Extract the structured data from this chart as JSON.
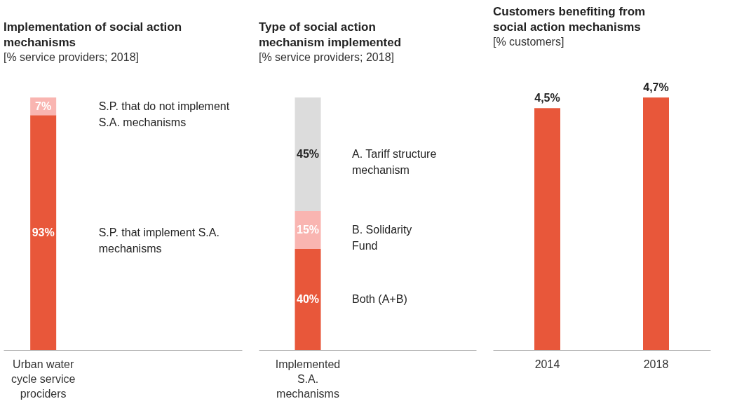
{
  "chart_data": [
    {
      "type": "bar",
      "title": "Implementation of social action mechanisms",
      "subtitle": "[% service providers; 2018]",
      "categories": [
        "Urban water cycle service prociders"
      ],
      "stacked": true,
      "series": [
        {
          "name": "S.P. that implement S.A. mechanisms",
          "color": "#e8573a",
          "values": [
            93
          ],
          "value_labels": [
            "93%"
          ]
        },
        {
          "name": "S.P. that do not implement S.A. mechanisms",
          "color": "#f9b5b1",
          "values": [
            7
          ],
          "value_labels": [
            "7%"
          ]
        }
      ]
    },
    {
      "type": "bar",
      "title": "Type of social action mechanism implemented",
      "subtitle": "[% service providers; 2018]",
      "categories": [
        "Implemented S.A. mechanisms"
      ],
      "stacked": true,
      "series": [
        {
          "name": "Both (A+B)",
          "color": "#e8573a",
          "values": [
            40
          ],
          "value_labels": [
            "40%"
          ]
        },
        {
          "name": "B. Solidarity Fund",
          "color": "#f9b5b1",
          "values": [
            15
          ],
          "value_labels": [
            "15%"
          ]
        },
        {
          "name": "A. Tariff structure mechanism",
          "color": "#dcdcdc",
          "values": [
            45
          ],
          "value_labels": [
            "45%"
          ]
        }
      ]
    },
    {
      "type": "bar",
      "title": "Customers benefiting from social action mechanisms",
      "subtitle": "[% customers]",
      "categories": [
        "2014",
        "2018"
      ],
      "color": "#e8573a",
      "values": [
        4.5,
        4.7
      ],
      "value_labels": [
        "4,5%",
        "4,7%"
      ]
    }
  ]
}
